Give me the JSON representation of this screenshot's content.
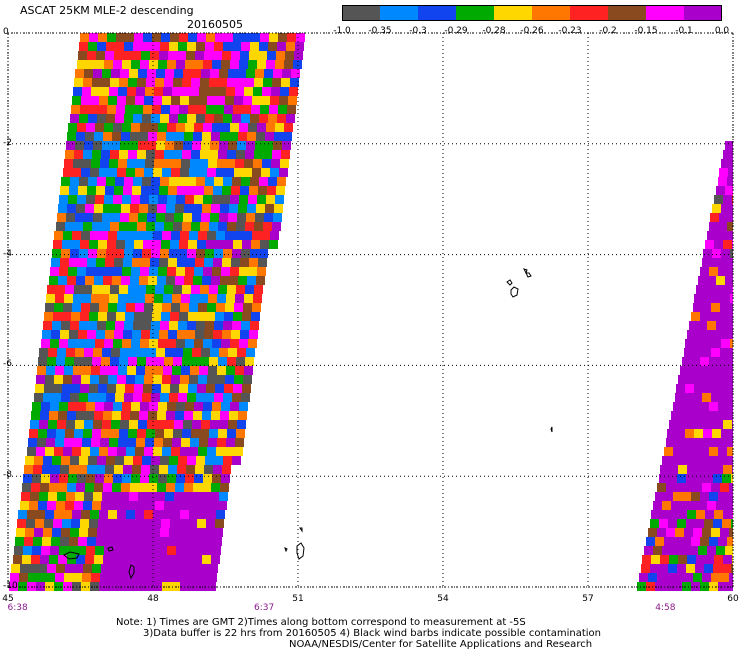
{
  "header": {
    "title": "ASCAT 25KM MLE-2 descending",
    "date": "20160505"
  },
  "colorbar": {
    "colors": [
      "#555555",
      "#0088ff",
      "#1144ee",
      "#00aa00",
      "#ffd700",
      "#ff7700",
      "#ff2222",
      "#8a4a20",
      "#ff00ff",
      "#aa00cc"
    ],
    "labels": [
      "-1.0",
      "-0.35",
      "-0.3",
      "-0.29",
      "-0.28",
      "-0.26",
      "-0.23",
      "-0.2",
      "-0.15",
      "-0.1",
      "0.0"
    ]
  },
  "axes": {
    "y_ticks": [
      "0",
      "-2",
      "-4",
      "-6",
      "-8",
      "-10"
    ],
    "x_ticks": [
      "45",
      "48",
      "51",
      "54",
      "57",
      "60"
    ],
    "lat_range": [
      -10,
      0
    ],
    "lon_range": [
      45,
      60
    ]
  },
  "pass_times": [
    {
      "label": "6:38",
      "lon": 45.2
    },
    {
      "label": "6:37",
      "lon": 50.3
    },
    {
      "label": "4:58",
      "lon": 58.6
    }
  ],
  "notes": {
    "line1": "Note: 1) Times are GMT 2)Times along bottom correspond to measurement at -5S",
    "line2": "3)Data buffer is 22 hrs from 20160505 4) Black wind barbs indicate possible contamination",
    "line3": "NOAA/NESDIS/Center for Satellite Applications and Research"
  },
  "icons": {
    "islands": "coastline-outlines"
  }
}
